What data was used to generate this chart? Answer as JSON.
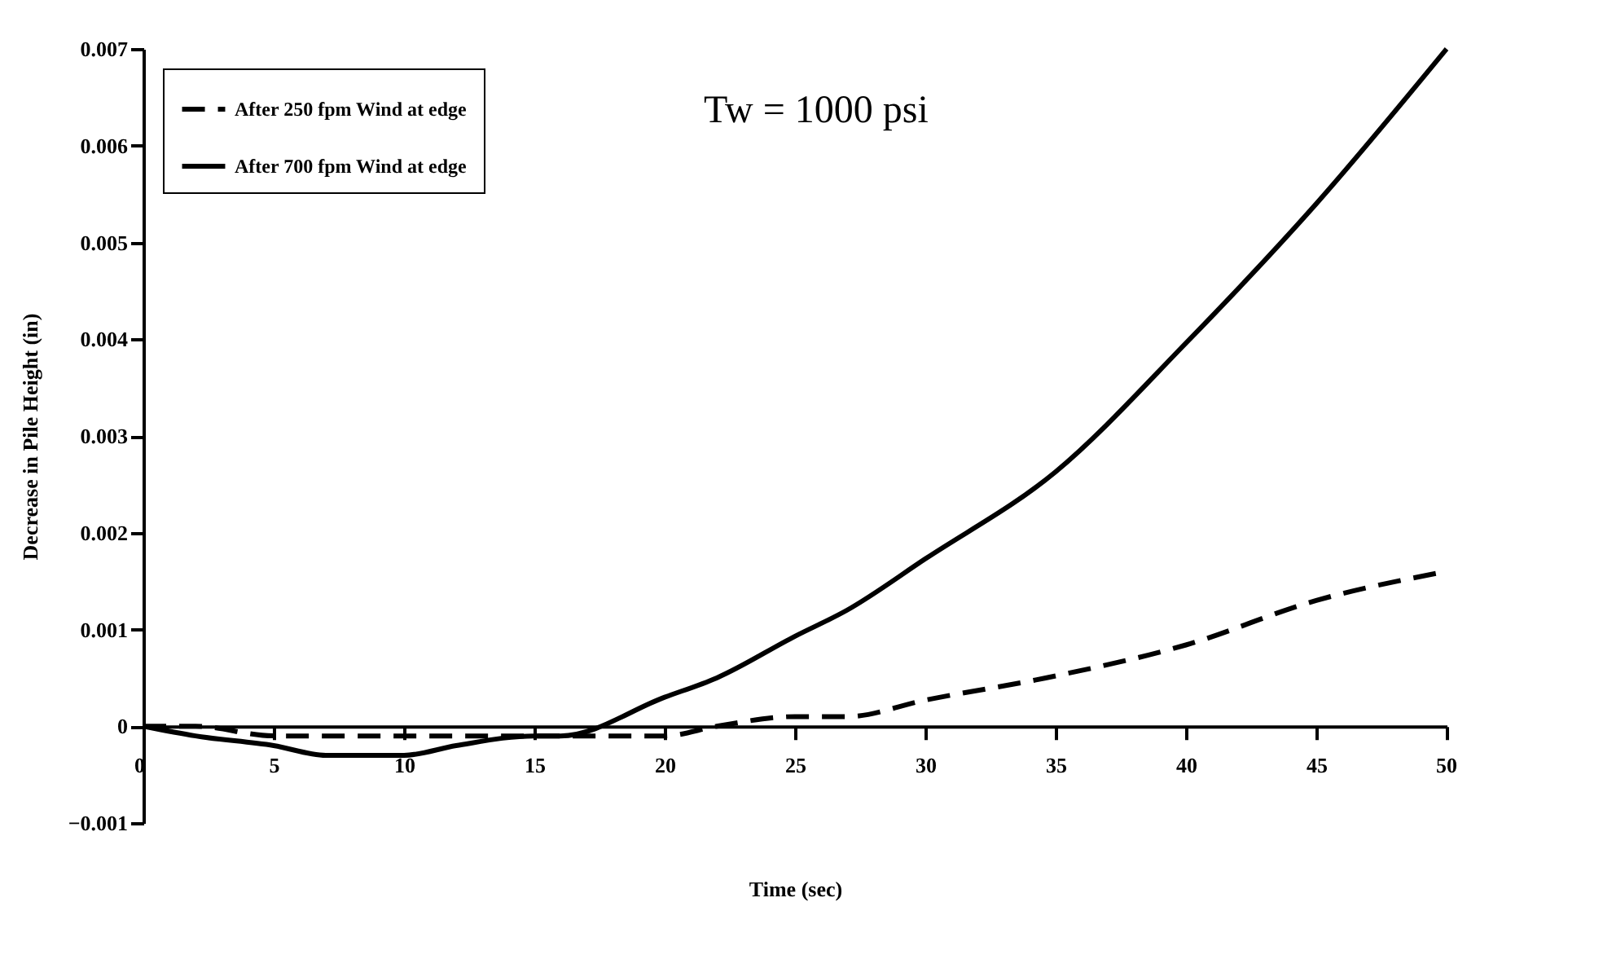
{
  "chart_data": {
    "type": "line",
    "xlabel": "Time (sec)",
    "ylabel": "Decrease in Pile Height (in)",
    "annotations": [
      "Tw = 1000 psi"
    ],
    "x": [
      0,
      2,
      5,
      7,
      10,
      12,
      15,
      16,
      20,
      22,
      25,
      27,
      30,
      35,
      40,
      45,
      50
    ],
    "series": [
      {
        "name": "After 250 fpm Wind at edge",
        "color": "#000000",
        "line_style": "dashed",
        "values": [
          0,
          0,
          -0.0001,
          -0.0001,
          -0.0001,
          -0.0001,
          -0.0001,
          -0.0001,
          -0.0001,
          0,
          0.0001,
          0.0001,
          0.00027,
          0.00052,
          0.00084,
          0.0013,
          0.0016
        ]
      },
      {
        "name": "After 700 fpm Wind at edge",
        "color": "#000000",
        "line_style": "solid",
        "values": [
          0,
          -0.0001,
          -0.0002,
          -0.0003,
          -0.0003,
          -0.0002,
          -0.0001,
          -0.0001,
          0.0003,
          0.0005,
          0.00093,
          0.0012,
          0.00173,
          0.00263,
          0.00396,
          0.0054,
          0.007
        ]
      }
    ],
    "xlim": [
      0,
      50
    ],
    "xticks": [
      0,
      5,
      10,
      15,
      20,
      25,
      30,
      35,
      40,
      45,
      50
    ],
    "ylim": [
      -0.001,
      0.007
    ],
    "yticks": [
      -0.001,
      0,
      0.001,
      0.002,
      0.003,
      0.004,
      0.005,
      0.006,
      0.007
    ],
    "grid": false,
    "legend": "top left"
  }
}
